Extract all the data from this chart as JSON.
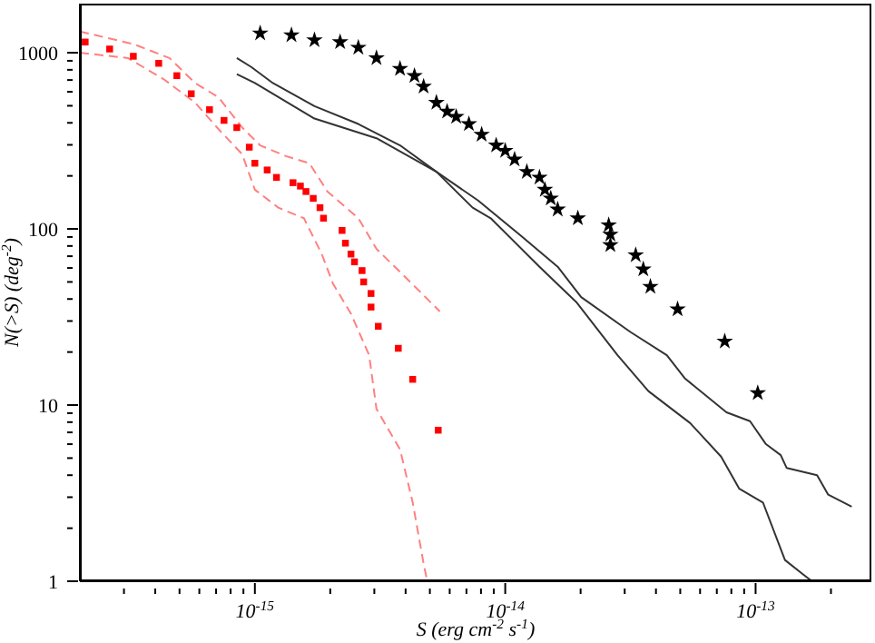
{
  "chart_data": {
    "type": "scatter",
    "xlabel": "S (erg cm$^{-2}$ s$^{-1}$)",
    "ylabel": "N(>S) (deg$^{-2}$)",
    "log": "xy",
    "grid": false,
    "legend": false,
    "xlim": [
      2e-16,
      2.9e-13
    ],
    "ylim": [
      1,
      1900
    ],
    "xticks": [
      {
        "value": 3e-16,
        "label": null
      },
      {
        "value": 4e-16,
        "label": null
      },
      {
        "value": 5e-16,
        "label": null
      },
      {
        "value": 6e-16,
        "label": null
      },
      {
        "value": 7e-16,
        "label": null
      },
      {
        "value": 8e-16,
        "label": null
      },
      {
        "value": 9e-16,
        "label": null
      },
      {
        "value": 1e-15,
        "label": "10$^{-15}$"
      },
      {
        "value": 2e-15,
        "label": null
      },
      {
        "value": 3e-15,
        "label": null
      },
      {
        "value": 4e-15,
        "label": null
      },
      {
        "value": 5e-15,
        "label": null
      },
      {
        "value": 6e-15,
        "label": null
      },
      {
        "value": 7e-15,
        "label": null
      },
      {
        "value": 8e-15,
        "label": null
      },
      {
        "value": 9e-15,
        "label": null
      },
      {
        "value": 1e-14,
        "label": "10$^{-14}$"
      },
      {
        "value": 2e-14,
        "label": null
      },
      {
        "value": 3e-14,
        "label": null
      },
      {
        "value": 4e-14,
        "label": null
      },
      {
        "value": 5e-14,
        "label": null
      },
      {
        "value": 6e-14,
        "label": null
      },
      {
        "value": 7e-14,
        "label": null
      },
      {
        "value": 8e-14,
        "label": null
      },
      {
        "value": 9e-14,
        "label": null
      },
      {
        "value": 1e-13,
        "label": "10$^{-13}$"
      },
      {
        "value": 2e-13,
        "label": null
      }
    ],
    "yticks": [
      1,
      {
        "value": 2,
        "label": null
      },
      {
        "value": 3,
        "label": null
      },
      {
        "value": 4,
        "label": null
      },
      {
        "value": 5,
        "label": null
      },
      {
        "value": 6,
        "label": null
      },
      {
        "value": 7,
        "label": null
      },
      {
        "value": 8,
        "label": null
      },
      {
        "value": 9,
        "label": null
      },
      10,
      {
        "value": 20,
        "label": null
      },
      {
        "value": 30,
        "label": null
      },
      {
        "value": 40,
        "label": null
      },
      {
        "value": 50,
        "label": null
      },
      {
        "value": 60,
        "label": null
      },
      {
        "value": 70,
        "label": null
      },
      {
        "value": 80,
        "label": null
      },
      {
        "value": 90,
        "label": null
      },
      100,
      {
        "value": 200,
        "label": null
      },
      {
        "value": 300,
        "label": null
      },
      {
        "value": 400,
        "label": null
      },
      {
        "value": 500,
        "label": null
      },
      {
        "value": 600,
        "label": null
      },
      {
        "value": 700,
        "label": null
      },
      {
        "value": 800,
        "label": null
      },
      {
        "value": 900,
        "label": null
      },
      1000
    ],
    "series": [
      {
        "type": "line",
        "color": "#ff8080",
        "line_style": "dashed",
        "marker": "none",
        "x": [
          2e-16,
          3.27e-16,
          4.56e-16,
          5.77e-16,
          7.16e-16,
          8.89e-16,
          1.05e-15,
          1.33e-15,
          1.65e-15,
          1.95e-15,
          2.59e-15,
          3.06e-15,
          3.8e-15,
          5.48e-15
        ],
        "values": [
          1320,
          1120,
          933,
          673,
          558,
          377,
          298,
          259,
          236,
          163,
          115,
          77,
          57,
          34
        ]
      },
      {
        "type": "line",
        "color": "#ff8080",
        "line_style": "dashed",
        "marker": "none",
        "x": [
          2e-16,
          3.11e-16,
          4.34e-16,
          5.77e-16,
          7.16e-16,
          8.89e-16,
          1e-15,
          1.24e-15,
          1.57e-15,
          1.85e-15,
          2.05e-15,
          2.42e-15,
          2.86e-15,
          3.06e-15,
          3.8e-15,
          4.27e-15,
          4.72e-15,
          4.88e-15
        ],
        "values": [
          1000,
          933,
          705,
          521,
          368,
          266,
          167,
          132,
          115,
          72,
          49,
          33,
          19.2,
          9.5,
          5.6,
          2.8,
          1.26,
          1
        ]
      },
      {
        "type": "line",
        "color": "#333333",
        "line_style": "solid",
        "marker": "none",
        "x": [
          8.47e-16,
          9.67e-16,
          1.18e-15,
          1.73e-15,
          2.59e-15,
          3.8e-15,
          5.31e-15,
          7.79e-15,
          1.16e-14,
          1.62e-14,
          2.01e-14,
          3.16e-14,
          4.42e-14,
          5.21e-14,
          7.65e-14,
          9.5e-14,
          1.1e-13,
          1.26e-13,
          1.33e-13,
          1.76e-13,
          1.95e-13,
          2.42e-13
        ],
        "values": [
          933,
          830,
          673,
          498,
          394,
          298,
          211,
          145,
          91,
          61,
          41,
          26,
          19.2,
          14.2,
          9.1,
          8.1,
          6.0,
          5.2,
          4.4,
          4.0,
          3.1,
          2.65
        ]
      },
      {
        "type": "line",
        "color": "#333333",
        "line_style": "solid",
        "marker": "none",
        "x": [
          8.47e-16,
          1e-15,
          1.73e-15,
          3.06e-15,
          5.31e-15,
          7.41e-15,
          8.75e-15,
          1.37e-14,
          1.92e-14,
          2.81e-14,
          3.73e-14,
          5.48e-14,
          7.28e-14,
          8.61e-14,
          1.07e-13,
          1.31e-13,
          1.54e-13,
          1.68e-13
        ],
        "values": [
          757,
          673,
          423,
          327,
          211,
          132,
          115,
          61,
          38.5,
          19.2,
          12,
          7.9,
          5.1,
          3.35,
          2.8,
          1.32,
          1.1,
          1
        ]
      },
      {
        "color": "#ff0000",
        "marker": "square",
        "x": [
          2.1e-16,
          2.63e-16,
          3.27e-16,
          4.13e-16,
          4.88e-16,
          5.57e-16,
          6.59e-16,
          7.53e-16,
          8.47e-16,
          9.5e-16,
          1e-15,
          1.12e-15,
          1.22e-15,
          1.42e-15,
          1.52e-15,
          1.6e-15,
          1.71e-15,
          1.82e-15,
          1.88e-15,
          2.23e-15,
          2.3e-15,
          2.42e-15,
          2.5e-15,
          2.68e-15,
          2.72e-15,
          2.91e-15,
          2.91e-15,
          3.11e-15,
          3.74e-15,
          4.27e-15,
          5.4e-15
        ],
        "values": [
          1150,
          1050,
          955,
          871,
          741,
          585,
          475,
          413,
          376,
          291,
          236,
          216,
          196,
          183,
          175,
          163,
          149,
          132,
          115,
          98,
          83,
          72,
          65,
          58,
          50,
          43,
          36,
          28,
          21,
          14,
          7.2
        ]
      },
      {
        "color": "#000000",
        "marker": "star",
        "x": [
          1.05e-15,
          1.4e-15,
          1.73e-15,
          2.19e-15,
          2.59e-15,
          3.06e-15,
          3.8e-15,
          4.34e-15,
          4.72e-15,
          5.31e-15,
          5.86e-15,
          6.37e-15,
          7.16e-15,
          8.05e-15,
          9.2e-15,
          1e-14,
          1.09e-14,
          1.22e-14,
          1.37e-14,
          1.44e-14,
          1.52e-14,
          1.62e-14,
          1.95e-14,
          2.59e-14,
          2.63e-14,
          2.63e-14,
          3.32e-14,
          3.56e-14,
          3.8e-14,
          4.88e-14,
          7.53e-14,
          1.02e-13
        ],
        "values": [
          1290,
          1260,
          1180,
          1150,
          1070,
          933,
          811,
          739,
          643,
          521,
          464,
          433,
          394,
          343,
          298,
          278,
          248,
          211,
          196,
          167,
          149,
          129,
          115,
          105,
          93,
          81,
          71,
          59,
          47,
          35,
          23,
          11.7
        ]
      }
    ]
  }
}
